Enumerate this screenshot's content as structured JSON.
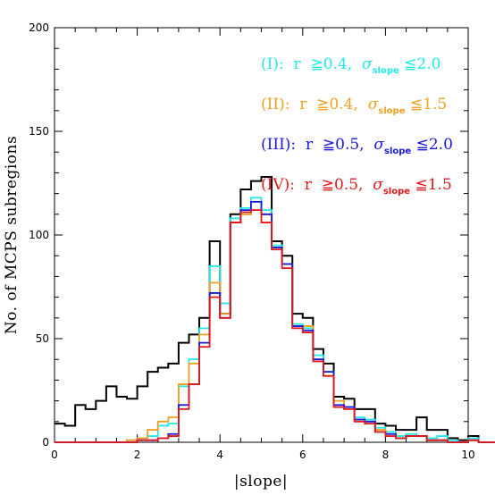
{
  "chart_data": {
    "type": "histogram",
    "xlabel": "|slope|",
    "ylabel": "No. of MCPS subregions",
    "xlim": [
      0,
      10
    ],
    "ylim": [
      0,
      200
    ],
    "xticks": [
      "0",
      "2",
      "4",
      "6",
      "8",
      "10"
    ],
    "yticks": [
      "0",
      "50",
      "100",
      "150",
      "200"
    ],
    "bin_width": 0.25,
    "bin_start": 0,
    "series": [
      {
        "name": "all",
        "color": "#000000",
        "values": [
          9,
          8,
          18,
          16,
          20,
          27,
          22,
          21,
          27,
          34,
          36,
          38,
          48,
          52,
          60,
          97,
          62,
          110,
          122,
          126,
          128,
          97,
          90,
          62,
          60,
          45,
          38,
          22,
          21,
          16,
          16,
          9,
          8,
          6,
          6,
          12,
          6,
          6,
          2,
          1,
          3,
          0,
          0,
          0,
          0,
          0,
          0,
          1,
          2,
          1
        ]
      },
      {
        "name": "(I)",
        "label_parts": {
          "prefix": "(I):  r  ≧",
          "r_value": "0.4",
          "sep": ",  ",
          "sigma": "σ",
          "sub": "slope",
          "rel": " ≦",
          "sigma_value": "2.0"
        },
        "color": "#22e8e8",
        "values": [
          0,
          0,
          0,
          0,
          0,
          0,
          0,
          1,
          2,
          3,
          8,
          9,
          27,
          40,
          55,
          85,
          67,
          108,
          113,
          118,
          112,
          95,
          86,
          57,
          55,
          42,
          34,
          20,
          17,
          12,
          11,
          7,
          5,
          3,
          4,
          3,
          2,
          3,
          1,
          0,
          2,
          0,
          0,
          0,
          0,
          0,
          0,
          0,
          0,
          0
        ]
      },
      {
        "name": "(II)",
        "label_parts": {
          "prefix": "(II):  r  ≧",
          "r_value": "0.4",
          "sep": ",  ",
          "sigma": "σ",
          "sub": "slope",
          "rel": " ≦",
          "sigma_value": "1.5"
        },
        "color": "#f0a020",
        "values": [
          0,
          0,
          0,
          0,
          0,
          0,
          0,
          1,
          2,
          6,
          10,
          12,
          28,
          38,
          52,
          77,
          62,
          106,
          110,
          112,
          110,
          94,
          86,
          56,
          56,
          40,
          32,
          20,
          16,
          11,
          10,
          6,
          4,
          2,
          3,
          3,
          1,
          1,
          0,
          0,
          1,
          0,
          0,
          0,
          0,
          0,
          0,
          0,
          0,
          0
        ]
      },
      {
        "name": "(III)",
        "label_parts": {
          "prefix": "(III):  r  ≧",
          "r_value": "0.5",
          "sep": ",  ",
          "sigma": "σ",
          "sub": "slope",
          "rel": " ≦",
          "sigma_value": "2.0"
        },
        "color": "#1818e0",
        "values": [
          0,
          0,
          0,
          0,
          0,
          0,
          0,
          0,
          1,
          1,
          2,
          4,
          18,
          28,
          48,
          72,
          60,
          106,
          112,
          116,
          110,
          94,
          86,
          56,
          54,
          40,
          34,
          18,
          17,
          11,
          10,
          5,
          4,
          2,
          3,
          3,
          1,
          1,
          0,
          0,
          1,
          0,
          0,
          0,
          0,
          0,
          0,
          0,
          0,
          0
        ]
      },
      {
        "name": "(IV)",
        "label_parts": {
          "prefix": "(IV):  r  ≧",
          "r_value": "0.5",
          "sep": ",  ",
          "sigma": "σ",
          "sub": "slope",
          "rel": " ≦",
          "sigma_value": "1.5"
        },
        "color": "#e01818",
        "values": [
          0,
          0,
          0,
          0,
          0,
          0,
          0,
          0,
          1,
          1,
          2,
          3,
          16,
          28,
          46,
          70,
          60,
          106,
          111,
          112,
          106,
          93,
          84,
          55,
          53,
          39,
          32,
          17,
          16,
          10,
          9,
          5,
          3,
          2,
          3,
          3,
          1,
          1,
          0,
          0,
          1,
          0,
          0,
          0,
          0,
          0,
          0,
          0,
          0,
          0
        ]
      }
    ],
    "legend_placement": "top-right",
    "grid": false
  }
}
